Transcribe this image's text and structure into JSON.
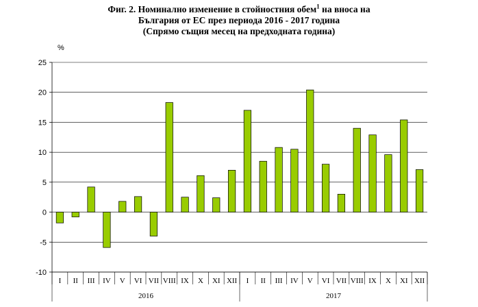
{
  "title": {
    "line1_prefix": "Фиг. 2. Номинално изменение в стойностния обем",
    "line1_sup": "1",
    "line1_suffix": " на вноса на",
    "line2": "България от ЕС през периода 2016 - 2017 година",
    "line3": "(Спрямо същия месец на предходната година)"
  },
  "chart_data": {
    "type": "bar",
    "ylabel": "%",
    "ylim": [
      -10,
      25
    ],
    "yticks": [
      -10,
      -5,
      0,
      5,
      10,
      15,
      20,
      25
    ],
    "grid": true,
    "legend": "none",
    "bar_color": "#99cc00",
    "bar_edge_color": "#000000",
    "categories": [
      "I",
      "II",
      "III",
      "IV",
      "V",
      "VI",
      "VII",
      "VIII",
      "IX",
      "X",
      "XI",
      "XII",
      "I",
      "II",
      "III",
      "IV",
      "V",
      "VI",
      "VII",
      "VIII",
      "IX",
      "X",
      "XI",
      "XII"
    ],
    "groups": [
      {
        "label": "2016",
        "count": 12
      },
      {
        "label": "2017",
        "count": 12
      }
    ],
    "values": [
      -1.8,
      -0.8,
      4.2,
      -5.9,
      1.8,
      2.6,
      -4.0,
      18.3,
      2.5,
      6.1,
      2.4,
      7.0,
      17.0,
      8.5,
      10.8,
      10.5,
      20.4,
      8.0,
      3.0,
      14.0,
      12.9,
      9.6,
      15.4,
      7.1
    ]
  }
}
